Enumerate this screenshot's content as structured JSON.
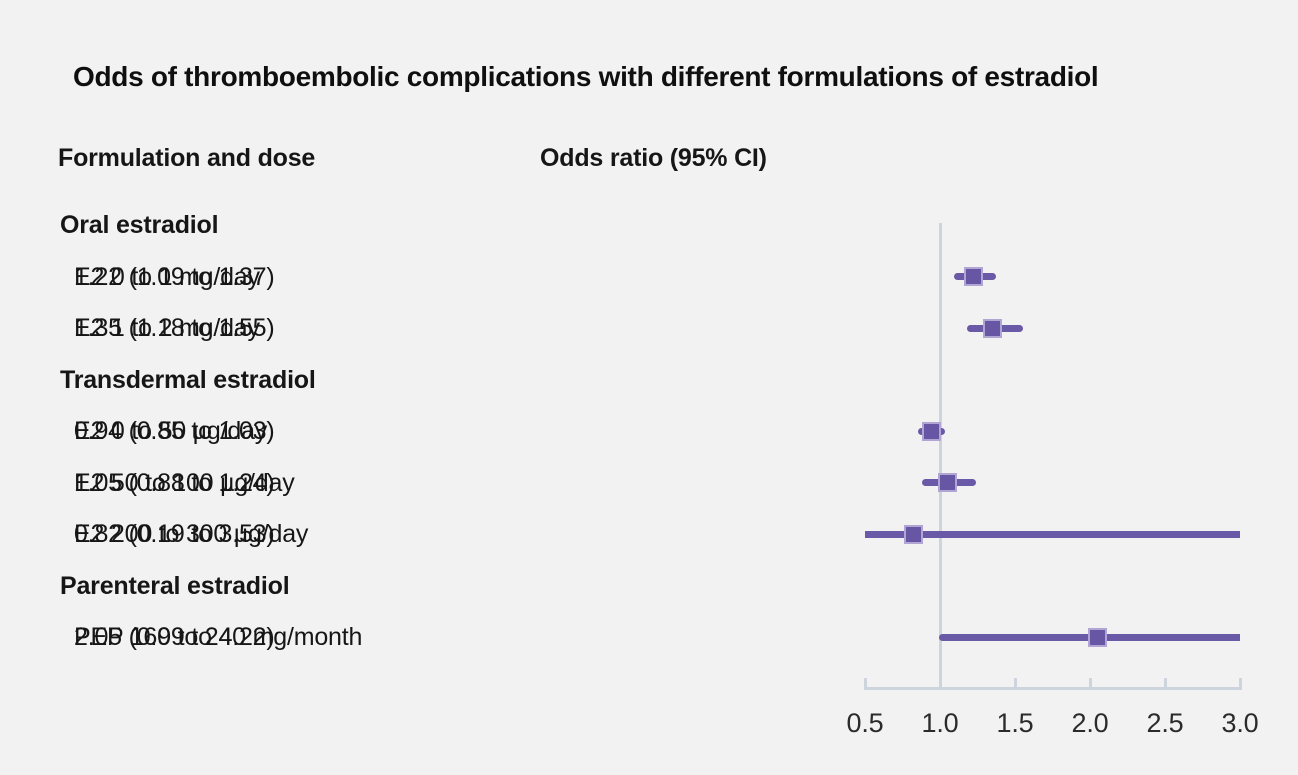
{
  "title": "Odds of thromboembolic complications with different formulations of estradiol",
  "columns": {
    "formulation": "Formulation and dose",
    "odds_ratio": "Odds ratio (95% CI)"
  },
  "colors": {
    "background": "#f2f2f2",
    "marker_purple": "#6959a6",
    "marker_square_fill": "#6656a4",
    "marker_square_border": "#b1a5d3",
    "axis_gray": "#ced4de",
    "text": "#161616"
  },
  "chart_data": {
    "type": "forest",
    "title": "Odds of thromboembolic complications with different formulations of estradiol",
    "xlabel": "",
    "ylabel": "",
    "xlim": [
      0.5,
      3.0
    ],
    "reference_line": 1.0,
    "x_ticks": [
      {
        "value": 0.5,
        "label": "0.5"
      },
      {
        "value": 1.0,
        "label": "1.0"
      },
      {
        "value": 1.5,
        "label": "1.5"
      },
      {
        "value": 2.0,
        "label": "2.0"
      },
      {
        "value": 2.5,
        "label": "2.5"
      },
      {
        "value": 3.0,
        "label": "3.0"
      }
    ],
    "rows": [
      {
        "kind": "group",
        "label": "Oral estradiol"
      },
      {
        "kind": "item",
        "label": "E2 0 to 1 mg/day",
        "value_text": "1.22 (1.09 to 1.37)",
        "or": 1.22,
        "ci_low": 1.09,
        "ci_high": 1.37
      },
      {
        "kind": "item",
        "label": "E2 1 to 2 mg/day",
        "value_text": "1.35 (1.18 to 1.55)",
        "or": 1.35,
        "ci_low": 1.18,
        "ci_high": 1.55
      },
      {
        "kind": "group",
        "label": "Transdermal estradiol"
      },
      {
        "kind": "item",
        "label": "E2 0 to 50 µg/day",
        "value_text": "0.94 (0.85 to 1.03)",
        "or": 0.94,
        "ci_low": 0.85,
        "ci_high": 1.03
      },
      {
        "kind": "item",
        "label": "E2 50 to 100 µg/day",
        "value_text": "1.05 (0.88 to 1.24)",
        "or": 1.05,
        "ci_low": 0.88,
        "ci_high": 1.24
      },
      {
        "kind": "item",
        "label": "E2 200 to 300 µg/day",
        "value_text": "0.82 (0.19 to 3.53)",
        "or": 0.82,
        "ci_low": 0.19,
        "ci_high": 3.53
      },
      {
        "kind": "group",
        "label": "Parenteral estradiol"
      },
      {
        "kind": "item",
        "label": "PEP 160 to 240 mg/month",
        "value_text": "2.05 (0.99 to 4.22)",
        "or": 2.05,
        "ci_low": 0.99,
        "ci_high": 4.22
      }
    ]
  }
}
